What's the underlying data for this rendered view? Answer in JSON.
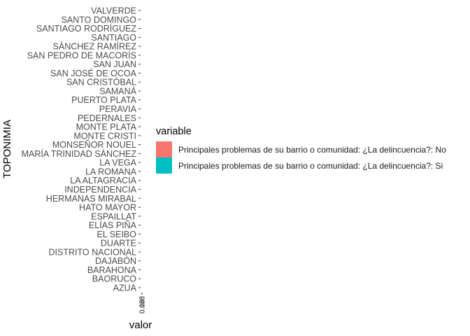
{
  "chart_data": {
    "type": "bar",
    "orientation": "horizontal",
    "title": "",
    "xlabel": "valor",
    "ylabel": "TOPONIMIA",
    "grid": false,
    "legend_position": "right",
    "legend_title": "variable",
    "categories": [
      "AZUA",
      "BAORUCO",
      "BARAHONA",
      "DAJABÓN",
      "DISTRITO NACIONAL",
      "DUARTE",
      "EL SEIBO",
      "ELÍAS PIÑA",
      "ESPAILLAT",
      "HATO MAYOR",
      "HERMANAS MIRABAL",
      "INDEPENDENCIA",
      "LA ALTAGRACIA",
      "LA ROMANA",
      "LA VEGA",
      "MARÍA TRINIDAD SÁNCHEZ",
      "MONSEÑOR NOUEL",
      "MONTE CRISTI",
      "MONTE PLATA",
      "PEDERNALES",
      "PERAVIA",
      "PUERTO PLATA",
      "SAMANÁ",
      "SAN CRISTÓBAL",
      "SAN JOSÉ DE OCOA",
      "SAN JUAN",
      "SAN PEDRO DE MACORÍS",
      "SÁNCHEZ RAMÍREZ",
      "SANTIAGO",
      "SANTIAGO RODRÍGUEZ",
      "SANTO DOMINGO",
      "VALVERDE"
    ],
    "x_tick_labels": [
      "0.000",
      "0.025",
      "0.050",
      "0.075",
      "0.100"
    ],
    "xlim": [
      0,
      0.1
    ],
    "series": [
      {
        "name": "Principales problemas de su barrio o comunidad: ¿La delincuencia?: No",
        "color": "#F8766D",
        "values": [
          0,
          0,
          0,
          0,
          0,
          0,
          0,
          0,
          0,
          0,
          0,
          0,
          0,
          0,
          0,
          0,
          0,
          0,
          0,
          0,
          0,
          0,
          0,
          0,
          0,
          0,
          0,
          0,
          0,
          0,
          0,
          0
        ]
      },
      {
        "name": "Principales problemas de su barrio o comunidad: ¿La delincuencia?: Si",
        "color": "#00BFC4",
        "values": [
          0,
          0,
          0,
          0,
          0,
          0,
          0,
          0,
          0,
          0,
          0,
          0,
          0,
          0,
          0,
          0,
          0,
          0,
          0,
          0,
          0,
          0,
          0,
          0,
          0,
          0,
          0,
          0,
          0,
          0,
          0,
          0
        ]
      }
    ]
  }
}
